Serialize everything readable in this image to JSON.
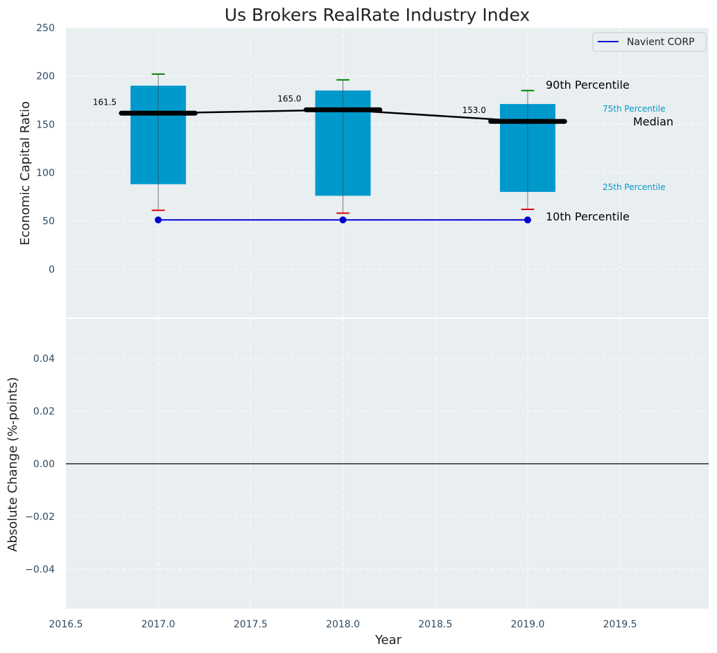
{
  "chart_data": [
    {
      "type": "box",
      "title": "Us Brokers RealRate Industry Index",
      "xlabel": "",
      "ylabel": "Economic Capital Ratio",
      "ylim": [
        -50,
        250
      ],
      "yticks": [
        0,
        50,
        100,
        150,
        200,
        250
      ],
      "grid": true,
      "legend": {
        "position": "top-right",
        "entries": [
          {
            "label": "Navient CORP",
            "color": "#0000cc"
          }
        ]
      },
      "boxes": [
        {
          "year": 2017,
          "p10": 61,
          "p25": 88,
          "median": 161.5,
          "p75": 190,
          "p90": 202,
          "median_label": "161.5"
        },
        {
          "year": 2018,
          "p10": 58,
          "p25": 76,
          "median": 165.0,
          "p75": 185,
          "p90": 196,
          "median_label": "165.0"
        },
        {
          "year": 2019,
          "p10": 62,
          "p25": 80,
          "median": 153.0,
          "p75": 171,
          "p90": 185,
          "median_label": "153.0"
        }
      ],
      "series": [
        {
          "name": "Navient CORP",
          "x": [
            2017,
            2018,
            2019
          ],
          "values": [
            51,
            51,
            51
          ],
          "color": "#0000cc"
        }
      ],
      "annotations": {
        "p90": "90th Percentile",
        "p75": "75th Percentile",
        "median": "Median",
        "p25": "25th Percentile",
        "p10": "10th Percentile"
      }
    },
    {
      "type": "line",
      "title": "",
      "xlabel": "Year",
      "ylabel": "Absolute Change (%-points)",
      "xlim": [
        2016.5,
        2019.98
      ],
      "ylim": [
        -0.055,
        0.055
      ],
      "xticks": [
        "2016.5",
        "2017.0",
        "2017.5",
        "2018.0",
        "2018.5",
        "2019.0",
        "2019.5"
      ],
      "yticks": [
        "0.04",
        "0.02",
        "0.00",
        "−0.02",
        "−0.04"
      ],
      "zero_line": true,
      "grid": true
    }
  ],
  "colors": {
    "panel_bg": "#e9eef0",
    "box": "#0099cc",
    "median": "#000000",
    "whisker_top": "#008000",
    "whisker_bottom": "#dd0000",
    "company": "#0000cc",
    "annot_cyan": "#0099cc"
  }
}
